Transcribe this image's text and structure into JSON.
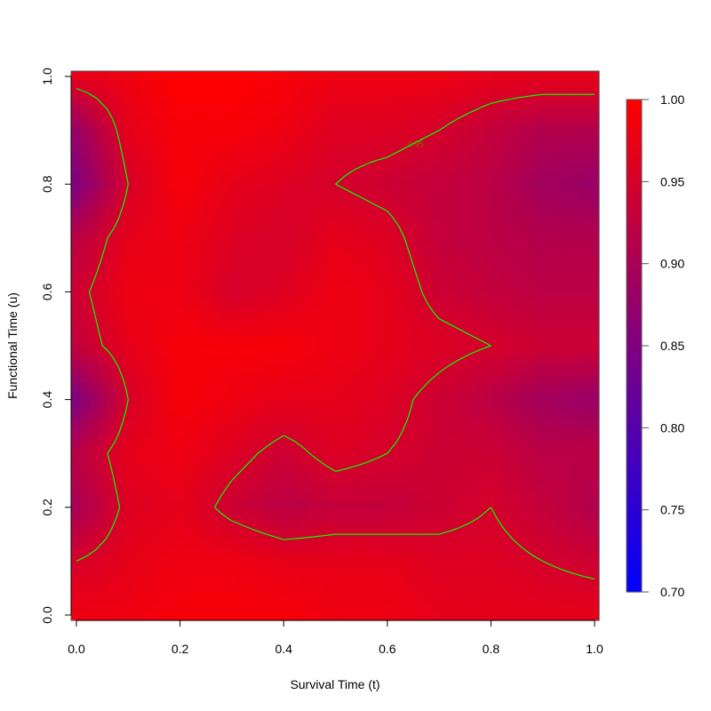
{
  "chart_data": {
    "type": "heatmap",
    "xlabel": "Survival Time (t)",
    "ylabel": "Functional Time (u)",
    "xlim": [
      0,
      1
    ],
    "ylim": [
      0,
      1
    ],
    "x_ticks": [
      "0.0",
      "0.2",
      "0.4",
      "0.6",
      "0.8",
      "1.0"
    ],
    "y_ticks": [
      "0.0",
      "0.2",
      "0.4",
      "0.6",
      "0.8",
      "1.0"
    ],
    "x": [
      0,
      0.1,
      0.2,
      0.3,
      0.4,
      0.5,
      0.6,
      0.7,
      0.8,
      0.9,
      1.0
    ],
    "y": [
      0,
      0.1,
      0.2,
      0.3,
      0.4,
      0.5,
      0.6,
      0.7,
      0.8,
      0.9,
      1.0
    ],
    "z": [
      [
        0.98,
        0.98,
        0.99,
        0.99,
        0.99,
        0.98,
        0.98,
        0.97,
        0.97,
        0.97,
        0.97
      ],
      [
        0.95,
        0.97,
        0.98,
        0.98,
        0.97,
        0.97,
        0.97,
        0.96,
        0.96,
        0.95,
        0.94
      ],
      [
        0.9,
        0.96,
        0.97,
        0.94,
        0.92,
        0.93,
        0.93,
        0.94,
        0.95,
        0.93,
        0.91
      ],
      [
        0.92,
        0.97,
        0.98,
        0.96,
        0.94,
        0.96,
        0.95,
        0.94,
        0.94,
        0.92,
        0.92
      ],
      [
        0.85,
        0.95,
        0.99,
        0.98,
        0.97,
        0.97,
        0.96,
        0.94,
        0.92,
        0.89,
        0.88
      ],
      [
        0.93,
        0.97,
        0.99,
        0.99,
        0.99,
        0.98,
        0.97,
        0.96,
        0.95,
        0.94,
        0.94
      ],
      [
        0.94,
        0.98,
        0.98,
        0.95,
        0.96,
        0.98,
        0.97,
        0.94,
        0.93,
        0.92,
        0.92
      ],
      [
        0.92,
        0.97,
        0.98,
        0.96,
        0.95,
        0.97,
        0.96,
        0.93,
        0.92,
        0.91,
        0.91
      ],
      [
        0.85,
        0.95,
        0.99,
        0.97,
        0.96,
        0.95,
        0.94,
        0.93,
        0.92,
        0.89,
        0.88
      ],
      [
        0.88,
        0.97,
        0.99,
        0.99,
        0.98,
        0.96,
        0.96,
        0.95,
        0.93,
        0.91,
        0.91
      ],
      [
        0.97,
        0.98,
        1.0,
        1.0,
        0.99,
        0.98,
        0.98,
        0.98,
        0.97,
        0.97,
        0.97
      ]
    ],
    "zlim": [
      0.7,
      1.0
    ],
    "colorscale": {
      "low": "#0000ff",
      "high": "#ff0000"
    },
    "colorbar_ticks": [
      "0.70",
      "0.75",
      "0.80",
      "0.85",
      "0.90",
      "0.95",
      "1.00"
    ],
    "contour": {
      "level": 0.95,
      "label": "0.95",
      "color": "#00ff00"
    },
    "grid": false,
    "legend": "colorbar-right"
  }
}
